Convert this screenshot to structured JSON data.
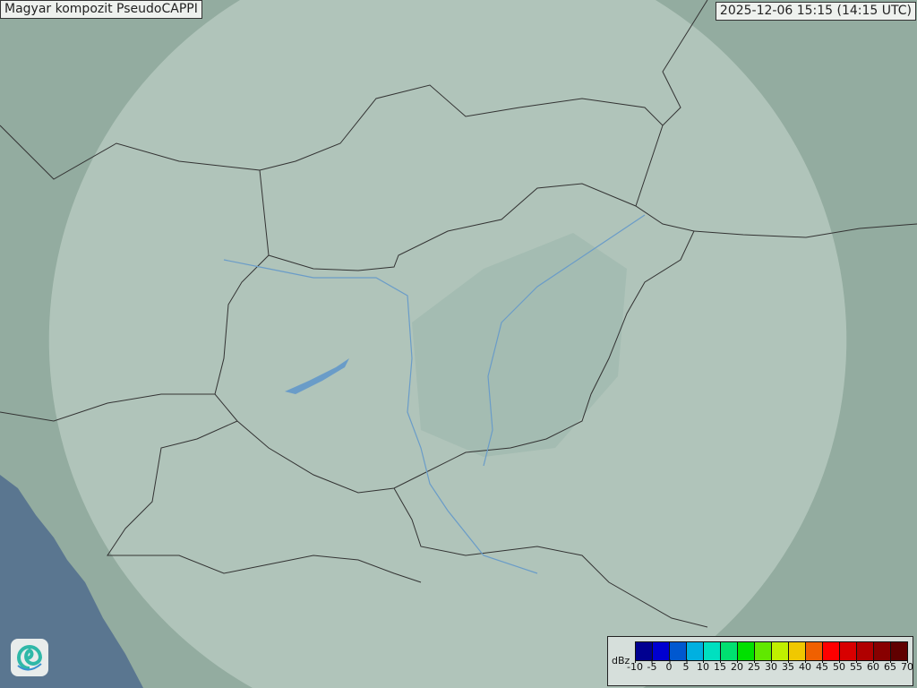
{
  "title": "Magyar kompozit  PseudoCAPPI",
  "timestamp": "2025-12-06 15:15 (14:15 UTC)",
  "legend": {
    "unit": "dBz",
    "ticks": [
      "-10",
      "-5",
      "0",
      "5",
      "10",
      "15",
      "20",
      "25",
      "30",
      "35",
      "40",
      "45",
      "50",
      "55",
      "60",
      "65",
      "70"
    ],
    "colors": [
      "#000090",
      "#0000d0",
      "#0058d0",
      "#00b0e0",
      "#00e0c0",
      "#00e070",
      "#00e000",
      "#60e800",
      "#c0f000",
      "#f0c800",
      "#f06000",
      "#ff0000",
      "#d80000",
      "#b00000",
      "#880000",
      "#600000"
    ]
  },
  "map": {
    "land_color": "#93aca0",
    "radar_coverage_color": "#c8d8d0",
    "sea_color": "#5a7690",
    "border_color": "#333333",
    "river_color": "#6a9cc8"
  },
  "logo": {
    "icon": "swirl-logo-icon"
  }
}
